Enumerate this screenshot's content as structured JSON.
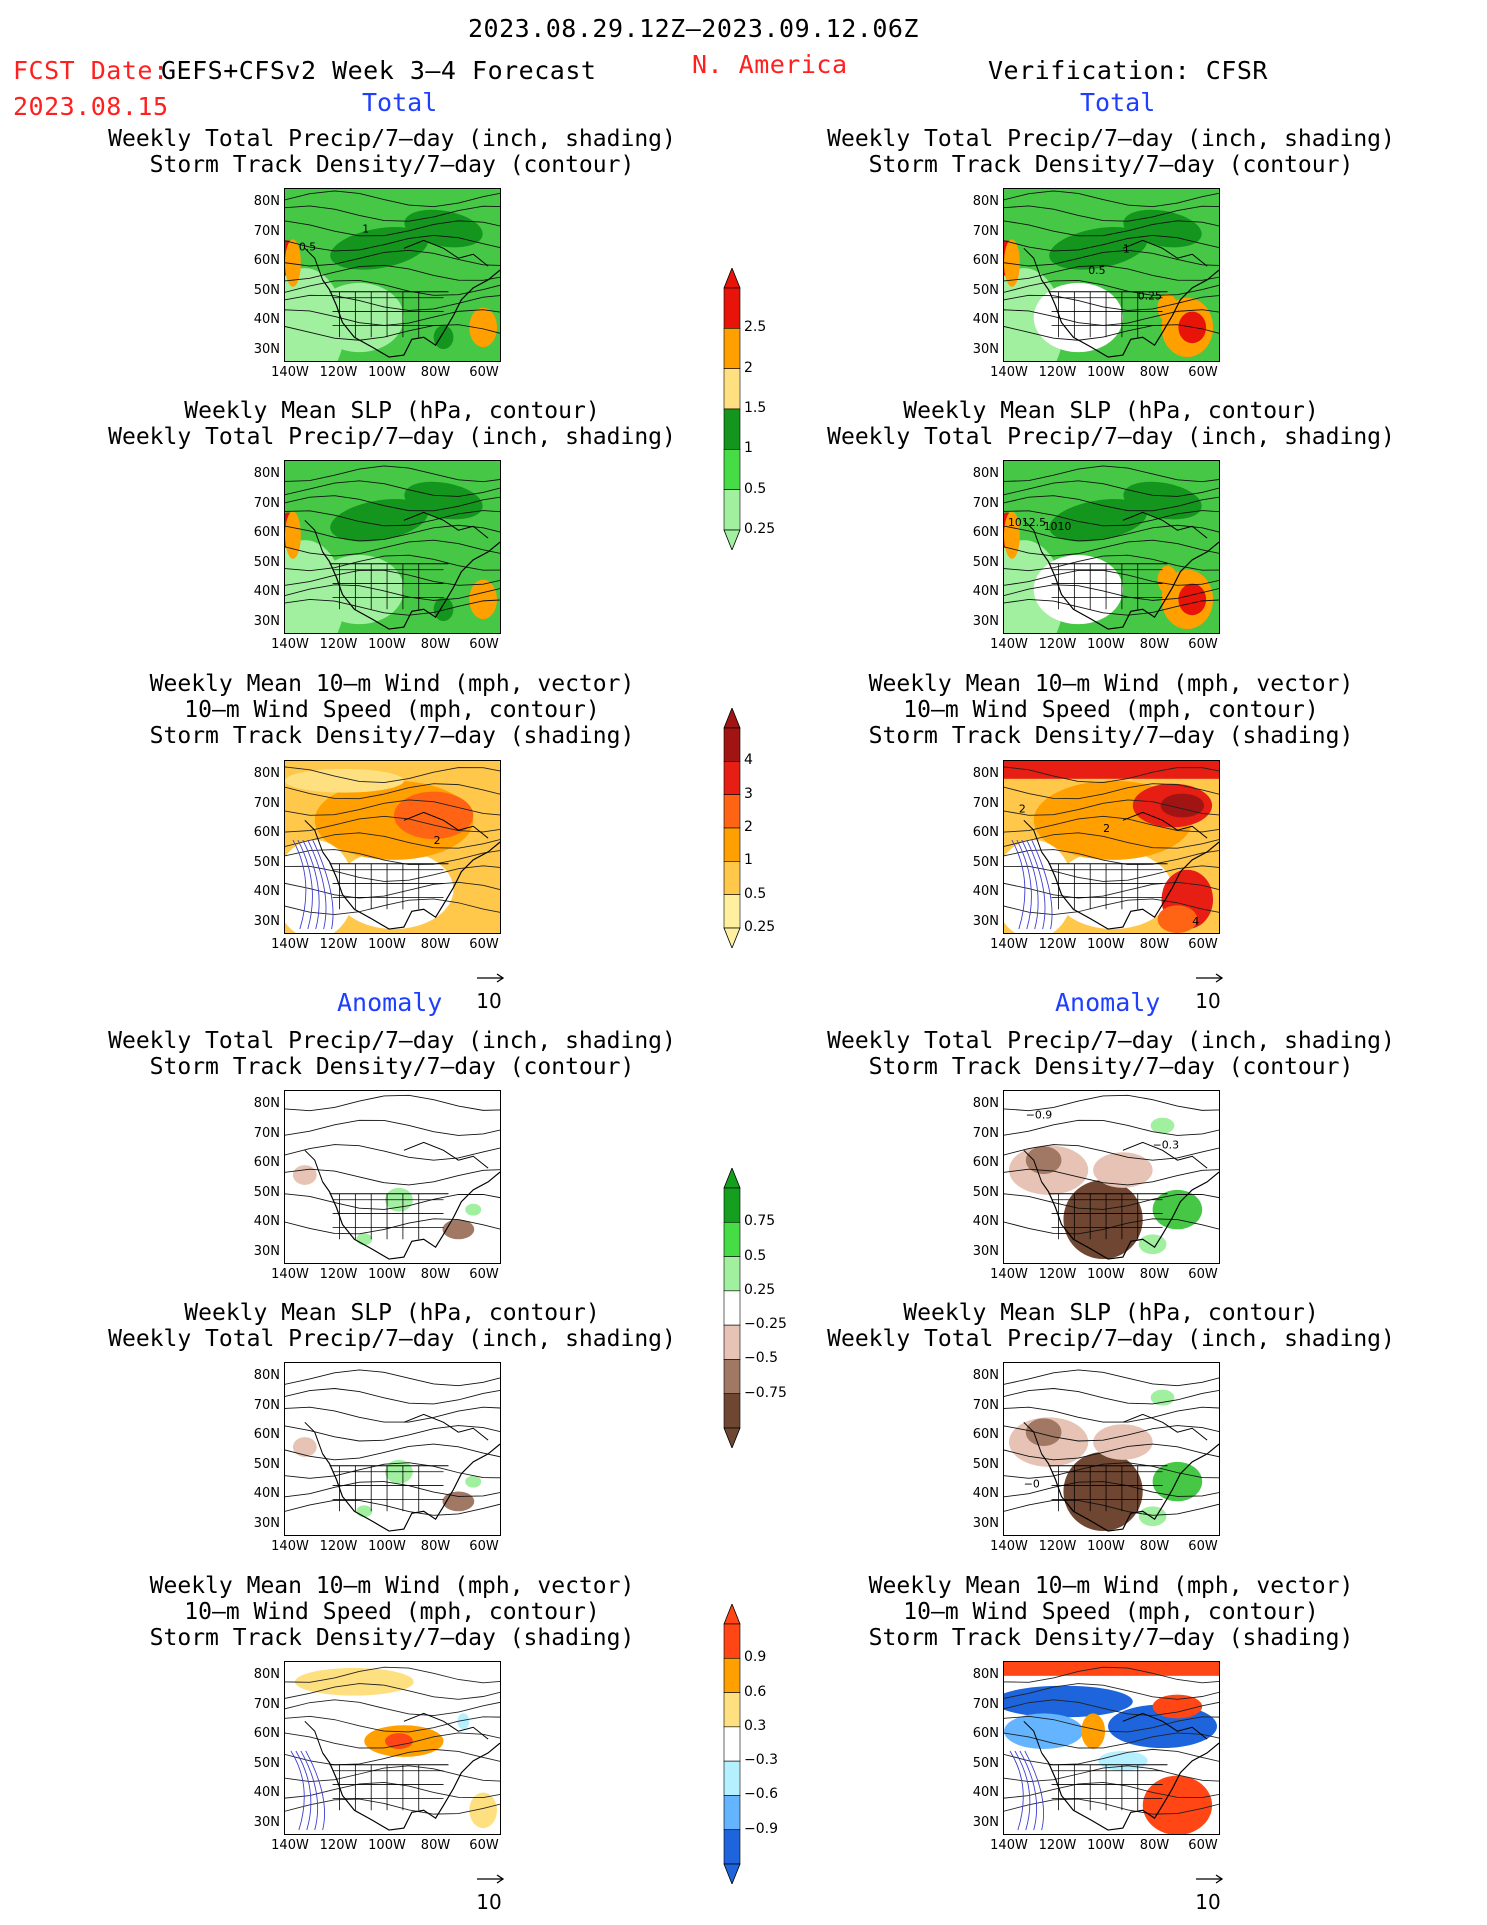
{
  "header": {
    "period": "2023.08.29.12Z–2023.09.12.06Z",
    "fcst_label": "FCST Date:",
    "fcst_date": "2023.08.15",
    "model": "GEFS+CFSv2 Week 3–4 Forecast",
    "region": "N. America",
    "verification": "Verification: CFSR"
  },
  "sections": {
    "total": "Total",
    "anomaly": "Anomaly"
  },
  "titles": {
    "precip_storm": "Weekly Total Precip/7–day (inch, shading)\nStorm Track Density/7–day (contour)",
    "slp_precip": "Weekly Mean SLP (hPa, contour)\nWeekly Total Precip/7–day (inch, shading)",
    "wind_storm": "Weekly Mean 10–m Wind (mph, vector)\n10–m Wind Speed (mph, contour)\nStorm Track Density/7–day (shading)"
  },
  "axes": {
    "lat_ticks": [
      "80N",
      "70N",
      "60N",
      "50N",
      "40N",
      "30N"
    ],
    "lon_ticks": [
      "140W",
      "120W",
      "100W",
      "80W",
      "60W"
    ]
  },
  "vector_ref": "10",
  "colorbars": [
    {
      "id": "precip_total",
      "labels": [
        "2.5",
        "2",
        "1.5",
        "1",
        "0.5",
        "0.25"
      ],
      "colors": [
        "#e8140a",
        "#ffa000",
        "#ffe080",
        "#14961e",
        "#46dc46",
        "#a0f0a0"
      ]
    },
    {
      "id": "storm_total",
      "labels": [
        "4",
        "3",
        "2",
        "1",
        "0.5",
        "0.25"
      ],
      "colors": [
        "#a01414",
        "#e61e14",
        "#ff6414",
        "#ffa000",
        "#ffc84a",
        "#fff0a0"
      ]
    },
    {
      "id": "precip_anom",
      "labels": [
        "0.75",
        "0.5",
        "0.25",
        "−0.25",
        "−0.5",
        "−0.75"
      ],
      "colors": [
        "#14a01e",
        "#46dc46",
        "#a0f0a0",
        "#ffffff",
        "#e6c3b4",
        "#a07864",
        "#6e4632"
      ]
    },
    {
      "id": "storm_anom",
      "labels": [
        "0.9",
        "0.6",
        "0.3",
        "−0.3",
        "−0.6",
        "−0.9"
      ],
      "colors": [
        "#ff4614",
        "#ffa000",
        "#ffe080",
        "#ffffff",
        "#b4f0ff",
        "#64b4ff",
        "#1e64dc"
      ]
    }
  ],
  "contour_labels": {
    "fc_precip": [
      "1",
      "0.5"
    ],
    "ob_precip": [
      "1",
      "0.5",
      "0.25"
    ],
    "ob_slp": [
      "1012.5",
      "1010"
    ],
    "fc_wind": [
      "2"
    ],
    "ob_wind": [
      "2",
      "2",
      "4"
    ],
    "ob_precip_anom": [
      "−0.9",
      "−0.3"
    ],
    "ob_slp_anom": [
      "−0"
    ]
  },
  "palette": {
    "green_light": "#a0f0a0",
    "green_mid": "#46c846",
    "green_dark": "#14961e",
    "orange": "#ffa000",
    "red": "#e8140a",
    "brown_light": "#e6c3b4",
    "brown_dark": "#6e4632",
    "blue_light": "#b4f0ff",
    "blue_mid": "#64b4ff",
    "blue_dark": "#1e64dc"
  }
}
